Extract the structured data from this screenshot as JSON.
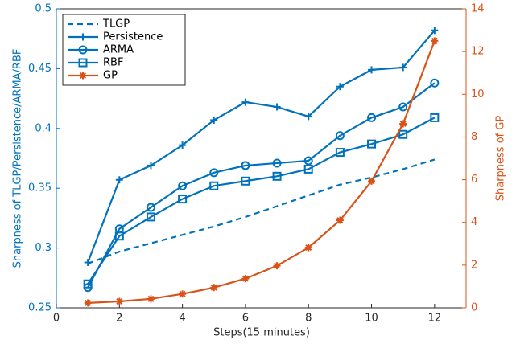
{
  "chart_data": {
    "type": "line",
    "x_label": "Steps(15 minutes)",
    "y_label": "Sharpness of TLGP/Persistence/ARMA/RBF",
    "y2_label": "Sharpness of GP",
    "x": [
      1,
      2,
      3,
      4,
      5,
      6,
      7,
      8,
      9,
      10,
      11,
      12
    ],
    "xlim": [
      0,
      13
    ],
    "xticks": [
      0,
      2,
      4,
      6,
      8,
      10,
      12
    ],
    "ylim": [
      0.25,
      0.5
    ],
    "yticks": [
      0.25,
      0.3,
      0.35,
      0.4,
      0.45,
      0.5
    ],
    "y2lim": [
      0,
      14
    ],
    "y2ticks": [
      0,
      2,
      4,
      6,
      8,
      10,
      12,
      14
    ],
    "y_color": "#0072bd",
    "y2_color": "#d95319",
    "legend": "upper-left",
    "series": [
      {
        "name": "TLGP",
        "color": "#0072bd",
        "dashed": true,
        "marker": "none",
        "values": [
          0.287,
          0.297,
          0.304,
          0.311,
          0.318,
          0.326,
          0.335,
          0.344,
          0.353,
          0.359,
          0.366,
          0.374
        ]
      },
      {
        "name": "Persistence",
        "color": "#0072bd",
        "marker": "plus",
        "values": [
          0.288,
          0.357,
          0.369,
          0.386,
          0.407,
          0.422,
          0.418,
          0.41,
          0.435,
          0.449,
          0.451,
          0.482
        ]
      },
      {
        "name": "ARMA",
        "color": "#0072bd",
        "marker": "circle",
        "values": [
          0.267,
          0.316,
          0.334,
          0.352,
          0.363,
          0.369,
          0.371,
          0.373,
          0.394,
          0.409,
          0.418,
          0.438
        ]
      },
      {
        "name": "RBF",
        "color": "#0072bd",
        "marker": "square",
        "values": [
          0.27,
          0.31,
          0.326,
          0.341,
          0.352,
          0.356,
          0.36,
          0.366,
          0.38,
          0.387,
          0.395,
          0.409
        ]
      },
      {
        "name": "GP",
        "color": "#d95319",
        "marker": "star",
        "axis": "y2",
        "values": [
          0.23,
          0.3,
          0.42,
          0.65,
          0.95,
          1.37,
          1.97,
          2.82,
          4.1,
          5.93,
          8.62,
          12.5
        ]
      }
    ]
  }
}
